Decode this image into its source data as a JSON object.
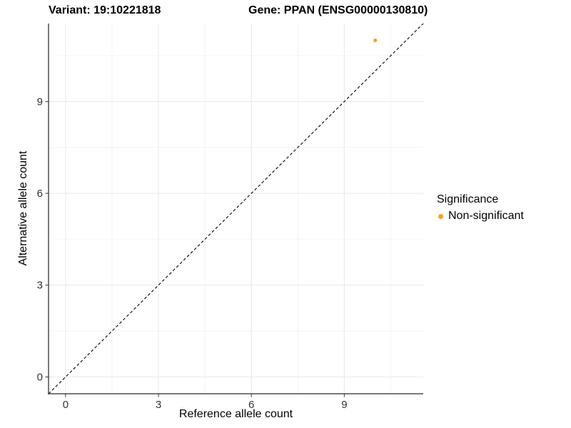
{
  "chart_data": {
    "type": "scatter",
    "titles": {
      "left": "Variant: 19:10221818",
      "right": "Gene: PPAN (ENSG00000130810)"
    },
    "xlabel": "Reference allele count",
    "ylabel": "Alternative allele count",
    "xlim": [
      -0.55,
      11.55
    ],
    "ylim": [
      -0.55,
      11.55
    ],
    "x_ticks": [
      0,
      3,
      6,
      9
    ],
    "y_ticks": [
      0,
      3,
      6,
      9
    ],
    "x_minor_ticks": [
      1.5,
      4.5,
      7.5,
      10.5
    ],
    "y_minor_ticks": [
      1.5,
      4.5,
      7.5,
      10.5
    ],
    "grid": "major+minor",
    "reference_line": {
      "type": "identity",
      "slope": 1,
      "intercept": 0,
      "style": "dashed",
      "color": "#000000"
    },
    "series": [
      {
        "name": "Non-significant",
        "color": "#F8A028",
        "points": [
          {
            "x": 10,
            "y": 11
          }
        ]
      }
    ],
    "legend": {
      "title": "Significance",
      "position": "right",
      "entries": [
        {
          "label": "Non-significant",
          "color": "#F8A028"
        }
      ]
    },
    "colors": {
      "background": "#ffffff",
      "grid_major": "#e8e8e8",
      "grid_minor": "#f4f4f4",
      "axis_line": "#4d4d4d",
      "tick_mark": "#333333",
      "tick_label": "#333333"
    }
  }
}
